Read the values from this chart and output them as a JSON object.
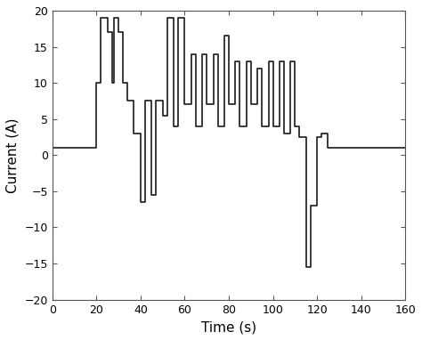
{
  "title": "",
  "xlabel": "Time (s)",
  "ylabel": "Current (A)",
  "xlim": [
    0,
    160
  ],
  "ylim": [
    -20,
    20
  ],
  "xticks": [
    0,
    20,
    40,
    60,
    80,
    100,
    120,
    140,
    160
  ],
  "yticks": [
    -20,
    -15,
    -10,
    -5,
    0,
    5,
    10,
    15,
    20
  ],
  "line_color": "#1a1a1a",
  "line_width": 1.2,
  "background_color": "#ffffff",
  "time_points": [
    0,
    20,
    20,
    22,
    22,
    25,
    25,
    27,
    27,
    28,
    28,
    30,
    30,
    32,
    32,
    34,
    34,
    37,
    37,
    40,
    40,
    42,
    42,
    45,
    45,
    47,
    47,
    50,
    50,
    52,
    52,
    55,
    55,
    57,
    57,
    60,
    60,
    63,
    63,
    65,
    65,
    68,
    68,
    70,
    70,
    73,
    73,
    75,
    75,
    78,
    78,
    80,
    80,
    83,
    83,
    85,
    85,
    88,
    88,
    90,
    90,
    93,
    93,
    95,
    95,
    98,
    98,
    100,
    100,
    103,
    103,
    105,
    105,
    108,
    108,
    110,
    110,
    112,
    112,
    115,
    115,
    117,
    117,
    120,
    120,
    122,
    122,
    125,
    125,
    160
  ],
  "current_points": [
    1,
    1,
    10,
    10,
    19,
    19,
    17,
    17,
    10,
    10,
    19,
    19,
    17,
    17,
    10,
    10,
    7.5,
    7.5,
    3,
    3,
    -6.5,
    -6.5,
    7.5,
    7.5,
    -5.5,
    -5.5,
    7.5,
    7.5,
    5.5,
    5.5,
    19,
    19,
    4,
    4,
    19,
    19,
    7,
    7,
    14,
    14,
    4,
    4,
    14,
    14,
    7,
    7,
    14,
    14,
    4,
    4,
    16.5,
    16.5,
    7,
    7,
    13,
    13,
    4,
    4,
    13,
    13,
    7,
    7,
    12,
    12,
    4,
    4,
    13,
    13,
    4,
    4,
    13,
    13,
    3,
    3,
    13,
    13,
    4,
    4,
    2.5,
    2.5,
    -15.5,
    -15.5,
    -7,
    -7,
    2.5,
    2.5,
    3,
    3,
    1,
    1
  ]
}
